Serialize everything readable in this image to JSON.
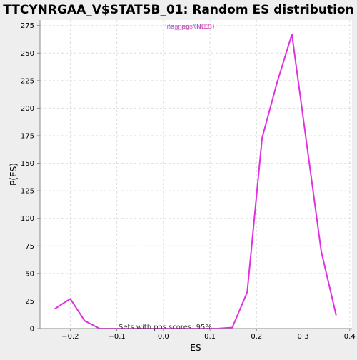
{
  "chart_data": {
    "type": "line",
    "title": "TTCYNRGAA_V$STAT5B_01: Random ES distribution",
    "xlabel": "ES",
    "ylabel": "P(ES)",
    "xlim": [
      -0.265,
      0.405
    ],
    "ylim": [
      0,
      280
    ],
    "xticks": [
      -0.2,
      -0.1,
      0.0,
      0.1,
      0.2,
      0.3,
      0.4
    ],
    "xtick_labels": [
      "−0.2",
      "−0.1",
      "0.0",
      "0.1",
      "0.2",
      "0.3",
      "0.4"
    ],
    "yticks": [
      0,
      25,
      50,
      75,
      100,
      125,
      150,
      175,
      200,
      225,
      250,
      275
    ],
    "ytick_labels": [
      "0",
      "25",
      "50",
      "75",
      "100",
      "125",
      "150",
      "175",
      "200",
      "225",
      "250",
      "275"
    ],
    "grid": true,
    "legend_text_1": "'na_neg' (NES)",
    "legend_text_2": "'na_pos' (NES)",
    "annotation": "Sets with pos scores: 95%",
    "colors": {
      "line": "#e030e0",
      "legend_text_1": "#8a44c8",
      "legend_text_2": "#e040a0",
      "grid": "#dddddd",
      "plot_bg": "#ffffff",
      "page_bg": "#eeeeee"
    },
    "series": [
      {
        "x": [
          -0.233,
          -0.2,
          -0.169,
          -0.137,
          -0.105,
          -0.073,
          -0.042,
          -0.01,
          0.021,
          0.053,
          0.085,
          0.116,
          0.148,
          0.18,
          0.212,
          0.244,
          0.276,
          0.307,
          0.339,
          0.371
        ],
        "values": [
          18,
          27,
          7,
          0,
          0,
          0,
          0,
          0,
          0,
          0,
          0,
          0,
          1,
          33,
          173,
          223,
          267,
          170,
          70,
          12
        ]
      }
    ]
  }
}
